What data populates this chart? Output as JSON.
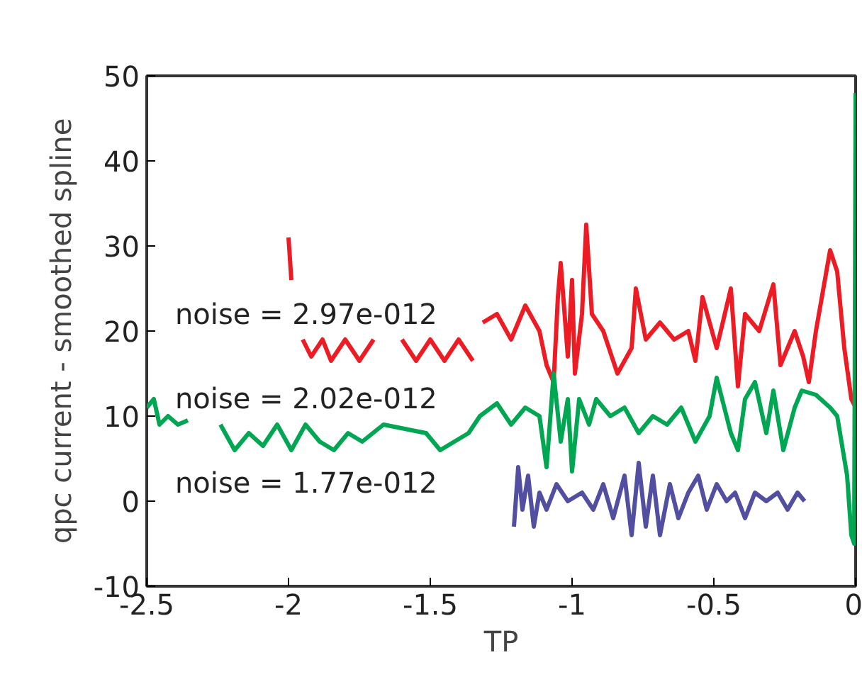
{
  "chart_data": {
    "type": "line",
    "xlabel": "TP",
    "ylabel": "qpc current - smoothed spline",
    "xlim": [
      -2.5,
      0
    ],
    "ylim": [
      -10,
      50
    ],
    "xticks": [
      -2.5,
      -2,
      -1.5,
      -1,
      -0.5,
      0
    ],
    "yticks": [
      -10,
      0,
      10,
      20,
      30,
      40,
      50
    ],
    "grid": false,
    "annotations": [
      "noise = 2.97e-012",
      "noise = 2.02e-012",
      "noise = 1.77e-012"
    ],
    "series": [
      {
        "color": "#ed1c24",
        "x": [
          -2.0,
          -1.99,
          -1.97,
          -1.95,
          -1.92,
          -1.88,
          -1.85,
          -1.8,
          -1.75,
          -1.7,
          -1.65,
          -1.6,
          -1.55,
          -1.5,
          -1.45,
          -1.4,
          -1.35,
          -1.34,
          -1.315,
          -1.265,
          -1.215,
          -1.165,
          -1.115,
          -1.09,
          -1.065,
          -1.05,
          -1.04,
          -1.015,
          -1.0,
          -0.99,
          -0.965,
          -0.95,
          -0.93,
          -0.89,
          -0.84,
          -0.79,
          -0.775,
          -0.74,
          -0.69,
          -0.64,
          -0.59,
          -0.565,
          -0.54,
          -0.49,
          -0.44,
          -0.415,
          -0.39,
          -0.34,
          -0.29,
          -0.265,
          -0.215,
          -0.185,
          -0.165,
          -0.14,
          -0.09,
          -0.065,
          -0.04,
          -0.015,
          0
        ],
        "values": [
          31,
          26,
          null,
          19,
          17,
          19,
          16.5,
          19,
          16.5,
          19,
          null,
          19,
          16.5,
          19,
          16.5,
          19,
          16.5,
          null,
          21,
          22,
          19,
          23,
          20,
          16,
          14,
          24,
          28,
          17,
          26,
          15,
          22,
          32.5,
          22,
          20,
          15,
          18,
          25,
          19,
          21,
          19,
          20,
          16.5,
          24,
          18,
          25,
          13.5,
          22,
          20,
          25.5,
          16,
          20,
          17,
          14,
          20,
          29.5,
          27,
          18,
          12,
          11
        ]
      },
      {
        "color": "#00a651",
        "x": [
          -2.5,
          -2.475,
          -2.455,
          -2.425,
          -2.39,
          -2.355,
          -2.3,
          -2.24,
          -2.19,
          -2.14,
          -2.09,
          -2.04,
          -1.99,
          -1.94,
          -1.89,
          -1.84,
          -1.79,
          -1.74,
          -1.665,
          -1.515,
          -1.465,
          -1.415,
          -1.365,
          -1.325,
          -1.265,
          -1.215,
          -1.165,
          -1.115,
          -1.09,
          -1.065,
          -1.04,
          -1.015,
          -1.0,
          -0.975,
          -0.94,
          -0.915,
          -0.865,
          -0.815,
          -0.765,
          -0.715,
          -0.665,
          -0.615,
          -0.565,
          -0.515,
          -0.49,
          -0.44,
          -0.415,
          -0.39,
          -0.355,
          -0.315,
          -0.29,
          -0.255,
          -0.215,
          -0.19,
          -0.14,
          -0.09,
          -0.065,
          -0.03,
          -0.015,
          -0.005,
          0
        ],
        "values": [
          11,
          12,
          9,
          10,
          9,
          9.5,
          null,
          9,
          6,
          8,
          6.5,
          9,
          6,
          9,
          7,
          6,
          8,
          7,
          9,
          8,
          6,
          7,
          8,
          10,
          11.5,
          9,
          11,
          10,
          4,
          15,
          7,
          12,
          3.5,
          12,
          9,
          12,
          10,
          11,
          8,
          10,
          9,
          11,
          7,
          10,
          14.5,
          8,
          6,
          12,
          14,
          8,
          13,
          6,
          11,
          13,
          12.5,
          11,
          10,
          3,
          -4,
          -5,
          48
        ]
      },
      {
        "color": "#524fa1",
        "x": [
          -1.205,
          -1.19,
          -1.175,
          -1.155,
          -1.135,
          -1.115,
          -1.09,
          -1.055,
          -1.015,
          -0.965,
          -0.925,
          -0.89,
          -0.855,
          -0.815,
          -0.79,
          -0.765,
          -0.74,
          -0.715,
          -0.69,
          -0.655,
          -0.625,
          -0.59,
          -0.555,
          -0.525,
          -0.49,
          -0.455,
          -0.425,
          -0.39,
          -0.355,
          -0.315,
          -0.275,
          -0.24,
          -0.205,
          -0.18
        ],
        "values": [
          -3,
          4,
          -1,
          3,
          -3,
          1,
          -1,
          2,
          0,
          1,
          -1,
          2,
          -2,
          3,
          -4,
          4.5,
          -3,
          3,
          -4,
          2,
          -2,
          1,
          3,
          -1,
          2,
          0,
          1,
          -2,
          1,
          0,
          1,
          -1,
          1,
          0
        ]
      }
    ]
  }
}
